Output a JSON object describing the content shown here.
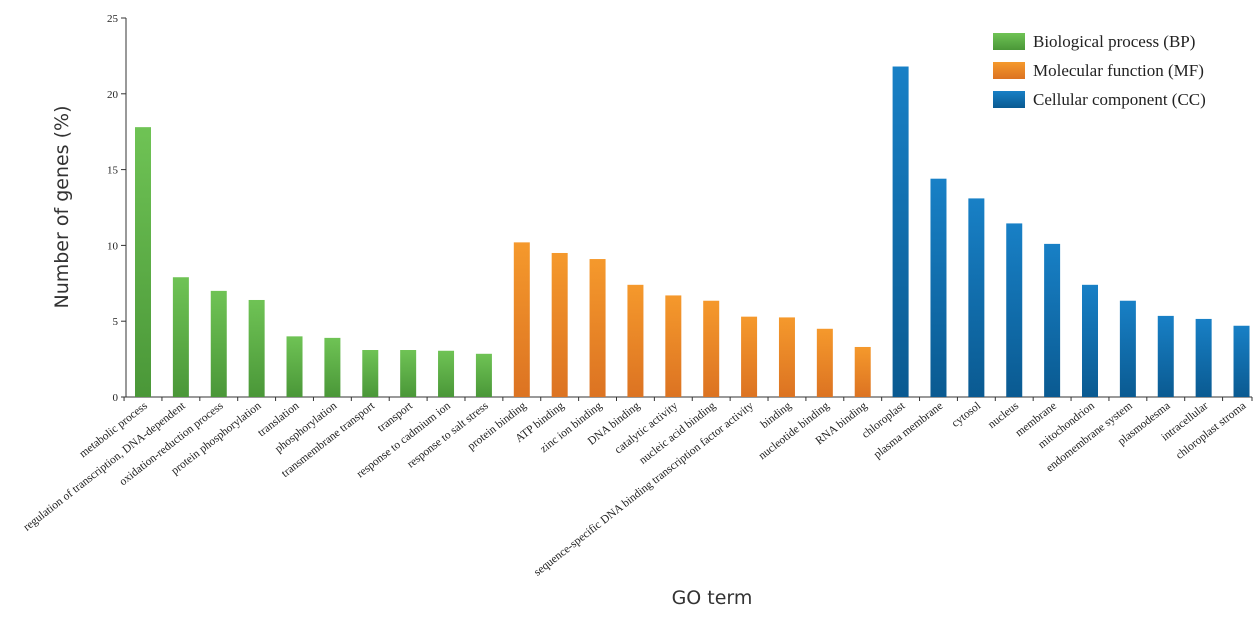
{
  "chart_data": {
    "type": "bar",
    "xlabel": "GO term",
    "ylabel": "Number of genes (%)",
    "ylim": [
      0,
      25
    ],
    "yticks": [
      0,
      5,
      10,
      15,
      20,
      25
    ],
    "grid": false,
    "legend_position": "top-right",
    "series": [
      {
        "name": "Biological process (BP)",
        "color": "#5aae46",
        "color_light": "#6fc355",
        "color_dark": "#4a9738",
        "categories": [
          "metabolic process",
          "regulation of transcription, DNA-dependent",
          "oxidation-reduction process",
          "protein phosphorylation",
          "translation",
          "phosphorylation",
          "transmembrane transport",
          "transport",
          "response to cadmium ion",
          "response to salt stress"
        ],
        "values": [
          17.8,
          7.9,
          7.0,
          6.4,
          4.0,
          3.9,
          3.1,
          3.1,
          3.05,
          2.85
        ]
      },
      {
        "name": "Molecular function (MF)",
        "color": "#ea8521",
        "color_light": "#f5992c",
        "color_dark": "#dc7322",
        "categories": [
          "protein binding",
          "ATP binding",
          "zinc ion binding",
          "DNA binding",
          "catalytic activity",
          "nucleic acid binding",
          "sequence-specific DNA binding transcription factor activity",
          "binding",
          "nucleotide binding",
          "RNA binding"
        ],
        "values": [
          10.2,
          9.5,
          9.1,
          7.4,
          6.7,
          6.35,
          5.3,
          5.25,
          4.5,
          3.3
        ]
      },
      {
        "name": "Cellular component (CC)",
        "color": "#0f6aa8",
        "color_light": "#1880c6",
        "color_dark": "#0a5a91",
        "categories": [
          "chloroplast",
          "plasma membrane",
          "cytosol",
          "nucleus",
          "membrane",
          "mitochondrion",
          "endomembrane system",
          "plasmodesma",
          "intracellular",
          "chloroplast stroma"
        ],
        "values": [
          21.8,
          14.4,
          13.1,
          11.45,
          10.1,
          7.4,
          6.35,
          5.35,
          5.15,
          4.7
        ]
      }
    ]
  }
}
